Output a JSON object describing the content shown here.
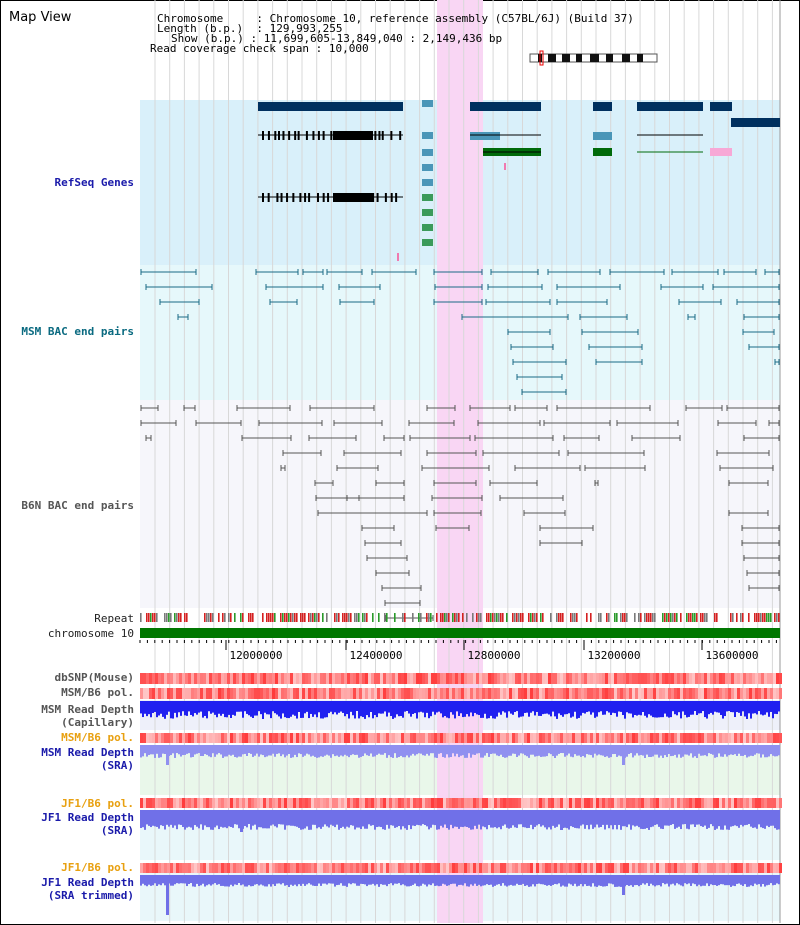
{
  "page": {
    "title": "Map View"
  },
  "info": {
    "chromosome_key": "Chromosome",
    "chromosome_value": "Chromosome 10, reference assembly (C57BL/6J) (Build 37)",
    "length_key": "Length (b.p.)",
    "length_value": "129,993,255",
    "show_key": "Show (b.p.)",
    "show_value": "11,699,605-13,849,040 : 2,149,436 bp",
    "coverage_key": "Read coverage check span",
    "coverage_value": "10,000"
  },
  "tracks": {
    "refseq": "RefSeq Genes",
    "msm_bac": "MSM BAC end pairs",
    "b6n_bac": "B6N BAC end pairs",
    "repeat": "Repeat",
    "chromosome": "chromosome 10",
    "dbsnp": "dbSNP(Mouse)",
    "msm_b6_pol_1": "MSM/B6 pol.",
    "msm_depth_cap_1": "MSM Read Depth",
    "msm_depth_cap_2": "(Capillary)",
    "msm_b6_pol_2": "MSM/B6 pol.",
    "msm_depth_sra_1": "MSM Read Depth",
    "msm_depth_sra_2": "(SRA)",
    "jf1_b6_pol_1": "JF1/B6 pol.",
    "jf1_depth_sra_1": "JF1 Read Depth",
    "jf1_depth_sra_2": "(SRA)",
    "jf1_b6_pol_2": "JF1/B6 pol.",
    "jf1_depth_trim_1": "JF1 Read Depth",
    "jf1_depth_trim_2": "(SRA trimmed)"
  },
  "ruler": {
    "ticks": [
      "12000000",
      "12400000",
      "12800000",
      "13200000",
      "13600000"
    ]
  },
  "colors": {
    "refseq_bg": "#d9f0fa",
    "msm_bac_bg": "#e6f8fb",
    "b6n_bac_bg": "#f6f6fb",
    "highlight": "#f9d6f4",
    "chromosome_bar": "#007700",
    "gene_dark": "#00305f",
    "gene_mid": "#4a96b8",
    "gene_green": "#006a0a",
    "bac_msm": "#1a6a86",
    "bac_b6n": "#555555",
    "depth_blue": "#1a1aff",
    "pol_red": "#ff3a3a"
  }
}
